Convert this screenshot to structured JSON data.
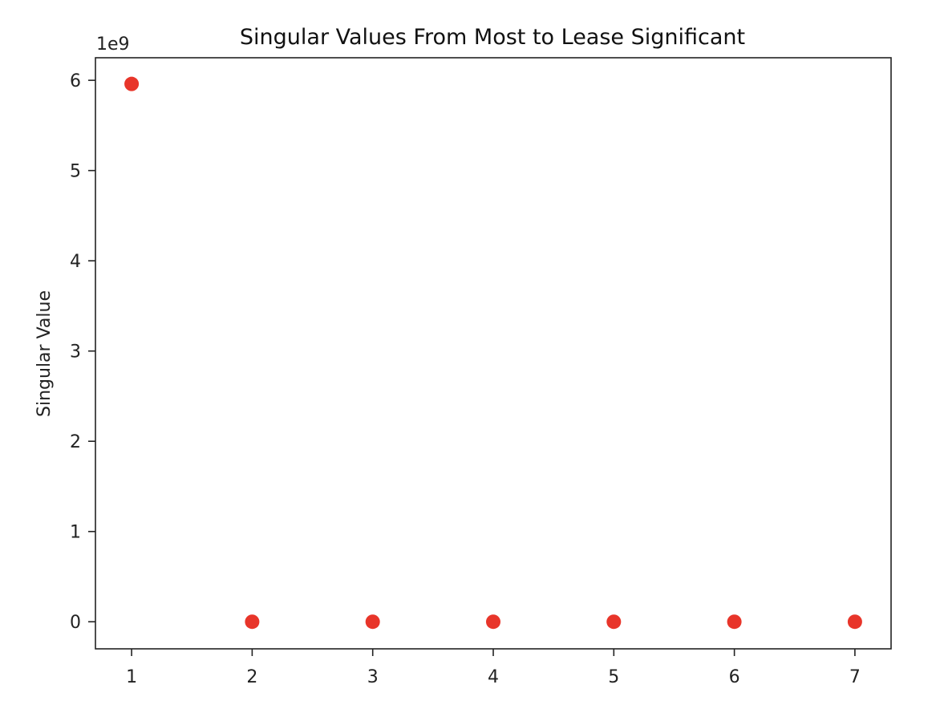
{
  "chart_data": {
    "type": "scatter",
    "title": "Singular Values From Most to Lease Significant",
    "xlabel": "",
    "ylabel": "Singular Value",
    "y_offset_label": "1e9",
    "x": [
      1,
      2,
      3,
      4,
      5,
      6,
      7
    ],
    "y": [
      5960000000,
      0,
      0,
      0,
      0,
      0,
      0
    ],
    "xlim": [
      0.7,
      7.3
    ],
    "ylim": [
      -300000000,
      6250000000
    ],
    "x_ticks": [
      1,
      2,
      3,
      4,
      5,
      6,
      7
    ],
    "y_ticks": [
      0,
      1,
      2,
      3,
      4,
      5,
      6
    ],
    "y_tick_multiplier": 1000000000,
    "marker_color": "#e8352a",
    "grid": false,
    "legend": false
  }
}
